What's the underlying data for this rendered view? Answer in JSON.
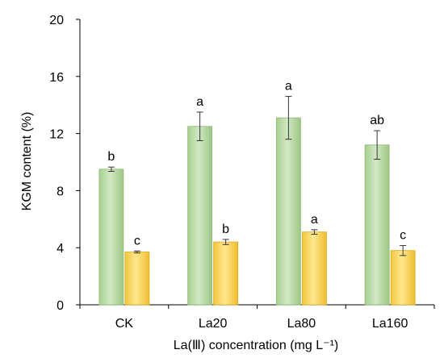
{
  "chart_data": {
    "type": "bar",
    "categories": [
      "CK",
      "La20",
      "La80",
      "La160"
    ],
    "series": [
      {
        "color": "#b5d7a0",
        "values": [
          9.5,
          12.5,
          13.1,
          11.2
        ],
        "errors": [
          0.15,
          1.0,
          1.5,
          1.0
        ],
        "labels": [
          "b",
          "a",
          "a",
          "ab"
        ]
      },
      {
        "color": "#ffd966",
        "values": [
          3.7,
          4.4,
          5.1,
          3.8
        ],
        "errors": [
          0.07,
          0.18,
          0.16,
          0.35
        ],
        "labels": [
          "c",
          "b",
          "a",
          "c"
        ]
      }
    ],
    "xlabel": "La(Ⅲ) concentration (mg L⁻¹)",
    "ylabel": "KGM content (%)",
    "ylim": [
      0,
      20
    ],
    "yticks": [
      0,
      4,
      8,
      12,
      16,
      20
    ],
    "grid": false,
    "legend": "none"
  }
}
